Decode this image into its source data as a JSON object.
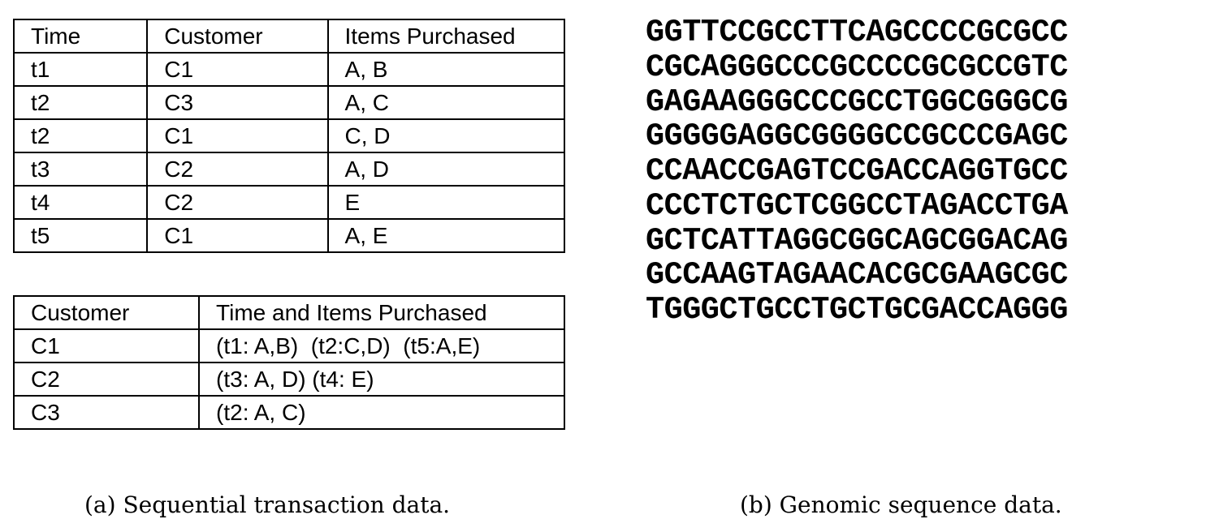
{
  "figure_a": {
    "headers": [
      "Time",
      "Customer",
      "Items Purchased"
    ],
    "rows": [
      [
        "t1",
        "C1",
        "A, B"
      ],
      [
        "t2",
        "C3",
        "A, C"
      ],
      [
        "t2",
        "C1",
        "C, D"
      ],
      [
        "t3",
        "C2",
        "A, D"
      ],
      [
        "t4",
        "C2",
        "E"
      ],
      [
        "t5",
        "C1",
        "A, E"
      ]
    ]
  },
  "figure_a_sequences": {
    "headers": [
      "Customer",
      "Time and Items Purchased"
    ],
    "rows": [
      [
        "C1",
        "(t1: A,B)  (t2:C,D)  (t5:A,E)"
      ],
      [
        "C2",
        "(t3: A, D) (t4: E)"
      ],
      [
        "C3",
        "(t2: A, C)"
      ]
    ]
  },
  "figure_b": {
    "lines": [
      "GGTTCCGCCTTCAGCCCCGCGCC",
      "CGCAGGGCCCGCCCCGCGCCGTC",
      "GAGAAGGGCCCGCCTGGCGGGCG",
      "GGGGGAGGCGGGGCCGCCCGAGC",
      "CCAACCGAGTCCGACCAGGTGCC",
      "CCCTCTGCTCGGCCTAGACCTGA",
      "GCTCATTAGGCGGCAGCGGACAG",
      "GCCAAGTAGAACACGCGAAGCGC",
      "TGGGCTGCCTGCTGCGACCAGGG"
    ]
  },
  "captions": {
    "a": "(a) Sequential transaction data.",
    "b": "(b) Genomic sequence data."
  }
}
